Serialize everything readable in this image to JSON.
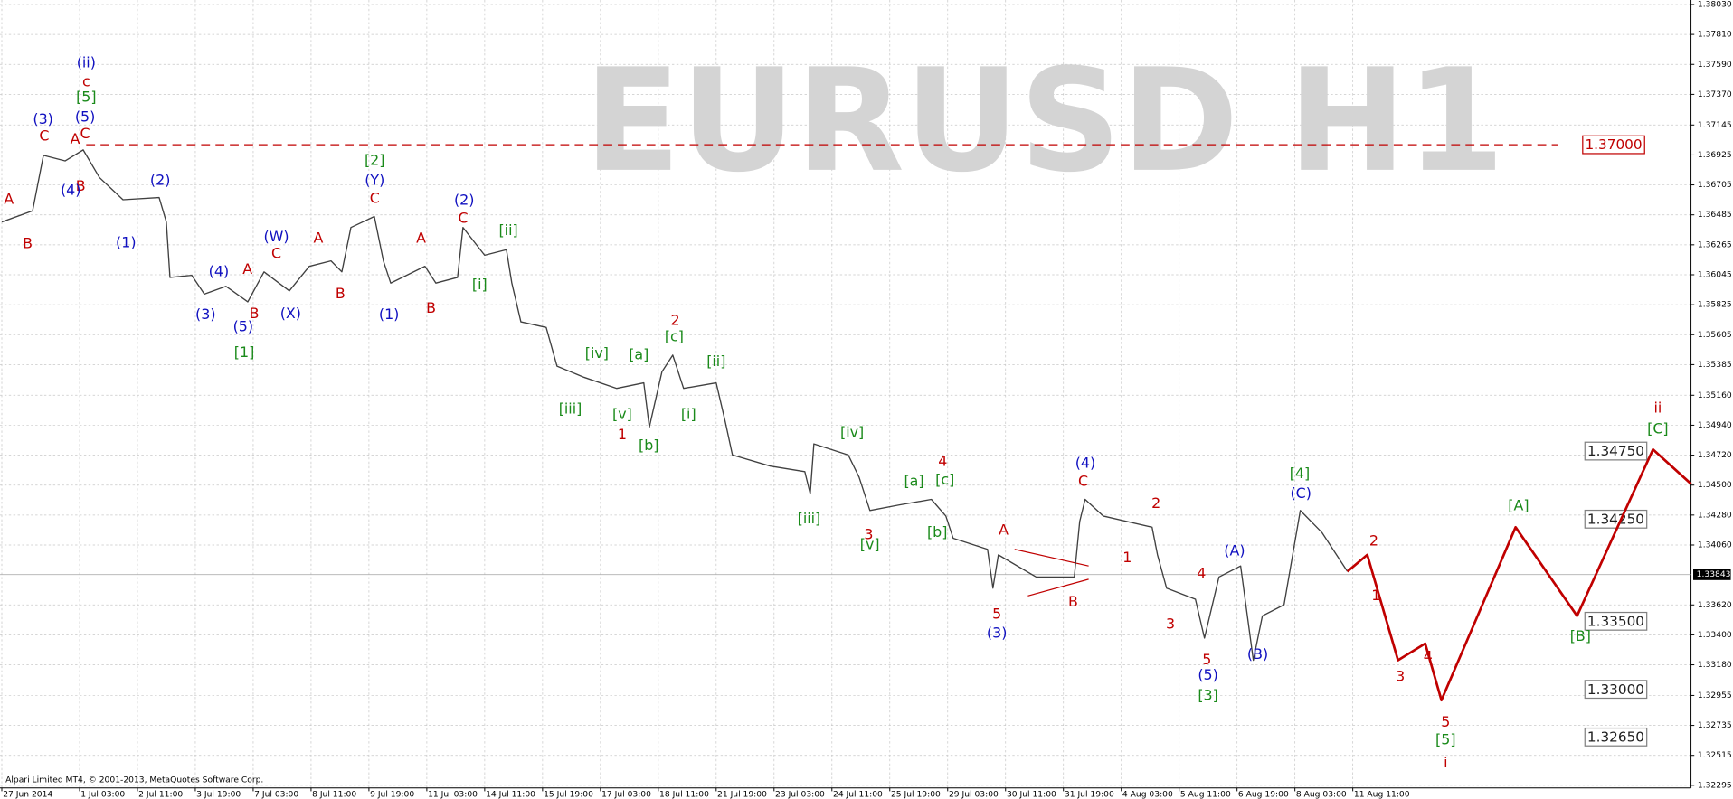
{
  "chart_data": {
    "type": "line",
    "watermark": "EURUSD H1",
    "copyright": "Alpari Limited MT4, © 2001-2013, MetaQuotes Software Corp.",
    "grid": true,
    "xlim": [
      -1,
      934
    ],
    "ylim": [
      1.32276,
      1.38063
    ],
    "xticks": [
      {
        "value": 0,
        "label": "27 Jun 2014"
      },
      {
        "value": 43,
        "label": "1 Jul 03:00"
      },
      {
        "value": 75,
        "label": "2 Jul 11:00"
      },
      {
        "value": 107,
        "label": "3 Jul 19:00"
      },
      {
        "value": 139,
        "label": "7 Jul 03:00"
      },
      {
        "value": 171,
        "label": "8 Jul 11:00"
      },
      {
        "value": 203,
        "label": "9 Jul 19:00"
      },
      {
        "value": 235,
        "label": "11 Jul 03:00"
      },
      {
        "value": 267,
        "label": "14 Jul 11:00"
      },
      {
        "value": 299,
        "label": "15 Jul 19:00"
      },
      {
        "value": 331,
        "label": "17 Jul 03:00"
      },
      {
        "value": 363,
        "label": "18 Jul 11:00"
      },
      {
        "value": 395,
        "label": "21 Jul 19:00"
      },
      {
        "value": 427,
        "label": "23 Jul 03:00"
      },
      {
        "value": 459,
        "label": "24 Jul 11:00"
      },
      {
        "value": 491,
        "label": "25 Jul 19:00"
      },
      {
        "value": 523,
        "label": "29 Jul 03:00"
      },
      {
        "value": 555,
        "label": "30 Jul 11:00"
      },
      {
        "value": 587,
        "label": "31 Jul 19:00"
      },
      {
        "value": 619,
        "label": "4 Aug 03:00"
      },
      {
        "value": 651,
        "label": "5 Aug 11:00"
      },
      {
        "value": 683,
        "label": "6 Aug 19:00"
      },
      {
        "value": 715,
        "label": "8 Aug 03:00"
      },
      {
        "value": 747,
        "label": "11 Aug 11:00"
      }
    ],
    "yticks": [
      {
        "value": 1.3803,
        "label": "1.38030"
      },
      {
        "value": 1.3781,
        "label": "1.37810"
      },
      {
        "value": 1.3759,
        "label": "1.37590"
      },
      {
        "value": 1.3737,
        "label": "1.37370"
      },
      1.37145,
      1.36925,
      1.36705,
      1.36485,
      1.36265,
      1.36045,
      1.35825,
      1.35605,
      1.35385,
      {
        "value": 1.3516,
        "label": "1.35160"
      },
      {
        "value": 1.3494,
        "label": "1.34940"
      },
      {
        "value": 1.3472,
        "label": "1.34720"
      },
      {
        "value": 1.345,
        "label": "1.34500"
      },
      {
        "value": 1.3428,
        "label": "1.34280"
      },
      {
        "value": 1.3406,
        "label": "1.34060"
      },
      {
        "value": 1.3362,
        "label": "1.33620"
      },
      {
        "value": 1.334,
        "label": "1.33400"
      },
      {
        "value": 1.3318,
        "label": "1.33180"
      },
      1.32955,
      1.32735,
      1.32515,
      1.32295
    ],
    "series": [
      {
        "color": "#404040",
        "x": [
          0,
          17,
          23,
          35,
          45,
          54,
          67,
          87,
          91,
          93,
          105,
          112,
          124,
          136,
          145,
          159,
          170,
          182,
          188,
          193,
          206,
          211,
          215,
          234,
          240,
          252,
          255,
          267,
          279,
          282,
          287,
          301,
          307,
          322,
          340,
          355,
          358,
          365,
          371,
          377,
          395,
          400,
          404,
          425,
          444,
          447,
          449,
          468,
          474,
          480,
          496,
          514,
          522,
          526,
          545,
          548,
          551,
          572,
          593,
          596,
          599,
          609,
          636,
          639,
          644,
          660,
          665,
          673,
          685,
          692,
          697,
          709,
          718,
          730,
          744
        ],
        "values": [
          1.36433,
          1.36514,
          1.36922,
          1.36881,
          1.36962,
          1.36759,
          1.36596,
          1.36612,
          1.36433,
          1.36025,
          1.36041,
          1.35903,
          1.3596,
          1.35846,
          1.36066,
          1.35927,
          1.36107,
          1.36147,
          1.36066,
          1.36392,
          1.36473,
          1.36147,
          1.35984,
          1.36107,
          1.35984,
          1.36025,
          1.36392,
          1.36188,
          1.36229,
          1.35984,
          1.35699,
          1.35658,
          1.35373,
          1.35292,
          1.3521,
          1.35251,
          1.34925,
          1.35332,
          1.35455,
          1.3521,
          1.35251,
          1.34966,
          1.34721,
          1.3464,
          1.34599,
          1.34436,
          1.34803,
          1.34721,
          1.34558,
          1.34314,
          1.34354,
          1.34395,
          1.34273,
          1.3411,
          1.34028,
          1.33743,
          1.33988,
          1.33825,
          1.33825,
          1.34232,
          1.34395,
          1.34273,
          1.34191,
          1.33988,
          1.33743,
          1.33662,
          1.33376,
          1.33825,
          1.33906,
          1.33213,
          1.33539,
          1.33621,
          1.34314,
          1.34151,
          1.33865
        ]
      },
      {
        "color": "#c00000",
        "x": [
          744,
          755,
          772,
          787,
          796,
          837,
          871,
          913,
          934
        ],
        "values": [
          1.33865,
          1.33988,
          1.33213,
          1.33336,
          1.3292,
          1.34191,
          1.33539,
          1.34762,
          1.34509
        ]
      }
    ],
    "levels": [
      {
        "value": 1.37,
        "label": "1.37000",
        "color": "#c00000",
        "dashed": true
      },
      {
        "value": 1.3475,
        "label": "1.34750",
        "color": "#808080",
        "dashed": false
      },
      {
        "value": 1.3425,
        "label": "1.34250",
        "color": "#808080",
        "dashed": false
      },
      {
        "value": 1.335,
        "label": "1.33500",
        "color": "#808080",
        "dashed": false
      },
      {
        "value": 1.33,
        "label": "1.33000",
        "color": "#808080",
        "dashed": false
      },
      {
        "value": 1.3265,
        "label": "1.32650",
        "color": "#808080",
        "dashed": false
      }
    ],
    "last_price": {
      "value": 1.33843,
      "label": "1.33843"
    },
    "wave_labels": [
      {
        "color": "#c00000",
        "texts": [
          "A",
          "B",
          "C",
          "A",
          "C",
          "c",
          "B",
          "C",
          "A",
          "B",
          "A",
          "C",
          "B",
          "A",
          "B",
          "C",
          "2",
          "1",
          "4",
          "3",
          "A",
          "5",
          "B",
          "C",
          "2",
          "1",
          "3",
          "4",
          "5",
          "2",
          "1",
          "3",
          "4",
          "5",
          "i",
          "ii"
        ]
      },
      {
        "color": "#1010c0",
        "texts": [
          "(ii)",
          "(5)",
          "(3)",
          "(4)",
          "(1)",
          "(2)",
          "(4)",
          "(3)",
          "(5)",
          "(W)",
          "(X)",
          "(Y)",
          "(2)",
          "(1)",
          "(4)",
          "(3)",
          "(5)",
          "(A)",
          "(B)",
          "(C)"
        ]
      },
      {
        "color": "#1a8a1a",
        "texts": [
          "[5]",
          "[2]",
          "[ii]",
          "[i]",
          "[1]",
          "[iv]",
          "[a]",
          "[c]",
          "[ii]",
          "[iii]",
          "[v]",
          "[i]",
          "[b]",
          "[iv]",
          "[a]",
          "[c]",
          "[iii]",
          "[b]",
          "[v]",
          "[3]",
          "[4]",
          "[5]",
          "[A]",
          "[B]",
          "[C]"
        ]
      }
    ]
  }
}
